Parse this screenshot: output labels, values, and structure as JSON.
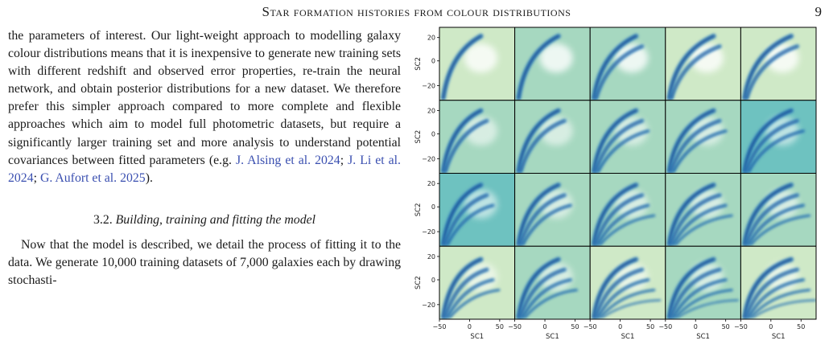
{
  "header": {
    "running_title": "Star formation histories from colour distributions",
    "page_number": "9"
  },
  "body": {
    "para1_text": "the parameters of interest. Our light-weight approach to modelling galaxy colour distributions means that it is inexpensive to generate new training sets with different redshift and observed error properties, re-train the neu­ral network, and obtain posterior distributions for a new dataset. We therefore prefer this simpler approach com­pared to more complete and flexible approaches which aim to model full photometric datasets, but require a significantly larger training set and more analysis to un­derstand potential covariances between fitted parameters (e.g. ",
    "citations": [
      {
        "text": "J. Alsing et al. 2024"
      },
      {
        "text": "J. Li et al. 2024"
      },
      {
        "text": "G. Aufort et al. 2025"
      }
    ],
    "para1_end": ").",
    "section_number": "3.2.",
    "section_title": "Building, training and fitting the model",
    "para2_text": "Now that the model is described, we detail the pro­cess of fitting it to the data. We generate 10,000 train­ing datasets of 7,000 galaxies each by drawing stochasti-"
  },
  "figure": {
    "rows": 4,
    "cols": 5,
    "xlabel": "SC1",
    "ylabel": "SC2",
    "x_ticks": [
      "−50",
      "0",
      "50"
    ],
    "y_ticks": [
      "20",
      "0",
      "−20"
    ],
    "palette": {
      "background_light": "#cfe9c7",
      "background_mid": "#a6d8c0",
      "background_teal": "#6ec2c0",
      "streak_dark": "#08509a",
      "streak_mid": "#4f95cc",
      "hole_white": "#ffffff"
    }
  }
}
